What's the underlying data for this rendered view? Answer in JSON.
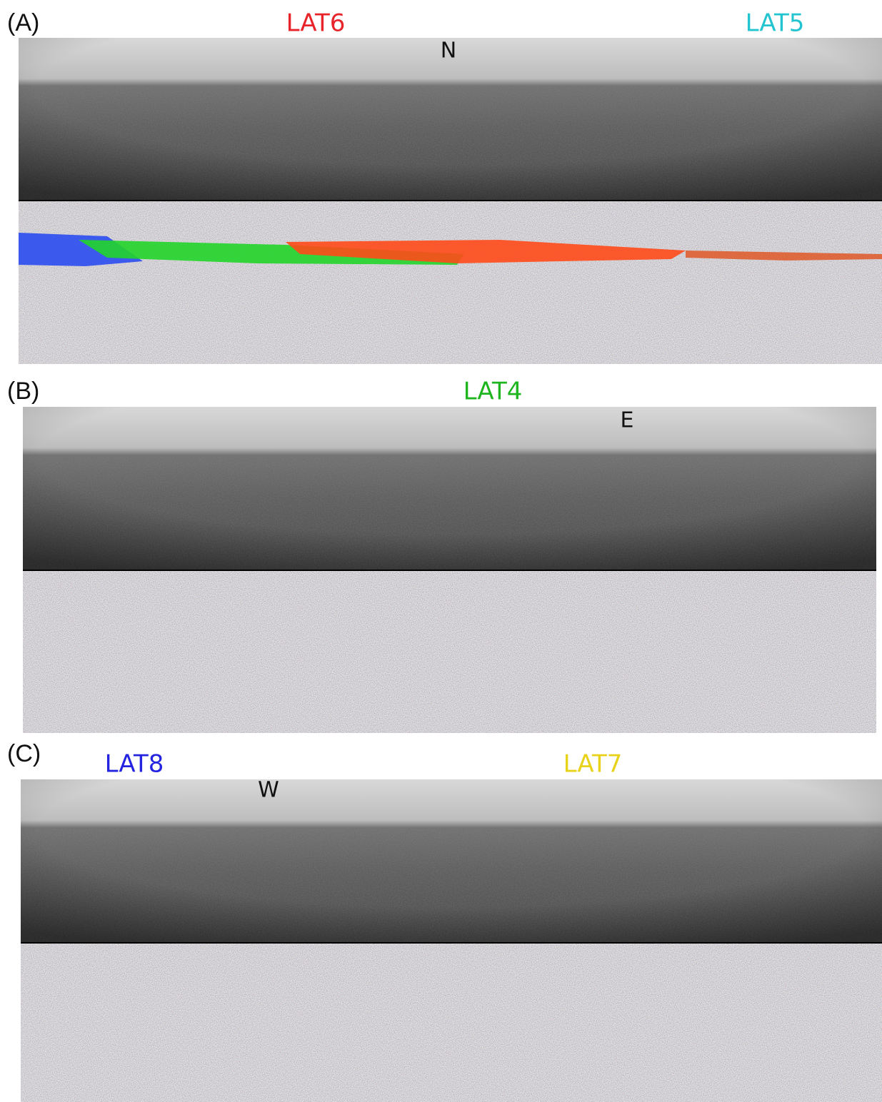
{
  "panels": [
    {
      "label": "(A)",
      "markers": [
        {
          "text": "LAT6",
          "color": "#e8232a"
        },
        {
          "text": "LAT5",
          "color": "#22c4cf"
        }
      ],
      "direction": "N"
    },
    {
      "label": "(B)",
      "markers": [
        {
          "text": "LAT4",
          "color": "#1fb51f"
        }
      ],
      "direction": "E"
    },
    {
      "label": "(C)",
      "markers": [
        {
          "text": "LAT8",
          "color": "#2424e0"
        },
        {
          "text": "LAT7",
          "color": "#e8d21a"
        }
      ],
      "direction": "W"
    }
  ]
}
